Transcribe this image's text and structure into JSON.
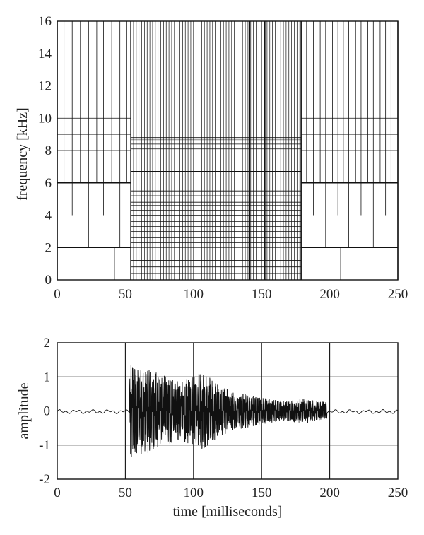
{
  "chart_data": [
    {
      "type": "heatmap",
      "description_kind": "time-frequency tiling",
      "ylabel": "frequency [kHz]",
      "xlabel": "",
      "xlim": [
        0,
        250
      ],
      "ylim": [
        0,
        16
      ],
      "xticks": [
        0,
        50,
        100,
        150,
        200,
        250
      ],
      "yticks": [
        0,
        2,
        4,
        6,
        8,
        10,
        12,
        14,
        16
      ],
      "grid": false,
      "segments": [
        {
          "x_range": [
            0,
            54
          ],
          "hlines": [
            2,
            6,
            8,
            9,
            10,
            11
          ],
          "hlines_bold": [
            2,
            6
          ],
          "cells": [
            {
              "y_range": [
                0,
                2
              ],
              "vlines": [
                42
              ]
            },
            {
              "y_range": [
                2,
                4
              ],
              "vlines": [
                23,
                46
              ]
            },
            {
              "y_range": [
                4,
                6
              ],
              "vlines": [
                11,
                23,
                34,
                46
              ]
            },
            {
              "y_range": [
                6,
                16
              ],
              "vlines": [
                5,
                11,
                17,
                23,
                29,
                34,
                40,
                46,
                51
              ]
            }
          ]
        },
        {
          "x_range": [
            54,
            179
          ],
          "hlines": [
            0.4,
            0.8,
            1.2,
            1.6,
            2.0,
            2.3,
            2.6,
            3.0,
            3.3,
            3.6,
            4.0,
            4.3,
            4.6,
            4.8,
            5.0,
            5.2,
            5.5,
            6.7,
            8.1,
            8.4,
            8.6,
            8.7,
            8.8,
            8.9
          ],
          "hlines_bold": [
            6.7
          ],
          "vlines_bold": [
            141.2,
            152.4
          ],
          "vlines": [
            56,
            58,
            60,
            62,
            64,
            66,
            68,
            70,
            72,
            74,
            76,
            78,
            80,
            82,
            84,
            86,
            88,
            90,
            92,
            94,
            96,
            98,
            100,
            102,
            104,
            106,
            108,
            110,
            112,
            114,
            116,
            118,
            120,
            122,
            124,
            126,
            128,
            130,
            132,
            134,
            136,
            138,
            140,
            142,
            144,
            146,
            148,
            150,
            152,
            154,
            156,
            158,
            160,
            162,
            164,
            166,
            168,
            170,
            172,
            174,
            176,
            178
          ]
        },
        {
          "x_range": [
            179,
            250
          ],
          "hlines": [
            2,
            6,
            8,
            9,
            10,
            11
          ],
          "hlines_bold": [
            2,
            6
          ],
          "cells": [
            {
              "y_range": [
                0,
                2
              ],
              "vlines": [
                208
              ]
            },
            {
              "y_range": [
                2,
                4
              ],
              "vlines": [
                197,
                214,
                232
              ]
            },
            {
              "y_range": [
                4,
                6
              ],
              "vlines": [
                188,
                197,
                206,
                214,
                223,
                232,
                241
              ]
            },
            {
              "y_range": [
                6,
                16
              ],
              "vlines": [
                183,
                188,
                193,
                197,
                202,
                206,
                210,
                214,
                219,
                223,
                228,
                232,
                237,
                241,
                245
              ]
            }
          ]
        }
      ]
    },
    {
      "type": "line",
      "xlabel": "time [milliseconds]",
      "ylabel": "amplitude",
      "xlim": [
        0,
        250
      ],
      "ylim": [
        -2,
        2
      ],
      "xticks": [
        0,
        50,
        100,
        150,
        200,
        250
      ],
      "yticks": [
        -2,
        -1,
        0,
        1,
        2
      ],
      "grid": true,
      "waveform": {
        "quiet_before": [
          0,
          50
        ],
        "burst": [
          53,
          198
        ],
        "quiet_after": [
          200,
          250
        ],
        "quiet_amplitude": 0.1,
        "envelope": [
          {
            "t": 54,
            "amp": 1.35
          },
          {
            "t": 58,
            "amp": 1.35
          },
          {
            "t": 63,
            "amp": 1.3
          },
          {
            "t": 67,
            "amp": 1.25
          },
          {
            "t": 72,
            "amp": 1.15
          },
          {
            "t": 78,
            "amp": 1.05
          },
          {
            "t": 84,
            "amp": 0.95
          },
          {
            "t": 90,
            "amp": 0.85
          },
          {
            "t": 96,
            "amp": 0.95
          },
          {
            "t": 102,
            "amp": 1.05
          },
          {
            "t": 108,
            "amp": 1.15
          },
          {
            "t": 114,
            "amp": 0.9
          },
          {
            "t": 120,
            "amp": 0.75
          },
          {
            "t": 130,
            "amp": 0.6
          },
          {
            "t": 140,
            "amp": 0.5
          },
          {
            "t": 150,
            "amp": 0.4
          },
          {
            "t": 160,
            "amp": 0.32
          },
          {
            "t": 170,
            "amp": 0.3
          },
          {
            "t": 180,
            "amp": 0.38
          },
          {
            "t": 190,
            "amp": 0.32
          },
          {
            "t": 198,
            "amp": 0.25
          }
        ]
      }
    }
  ]
}
